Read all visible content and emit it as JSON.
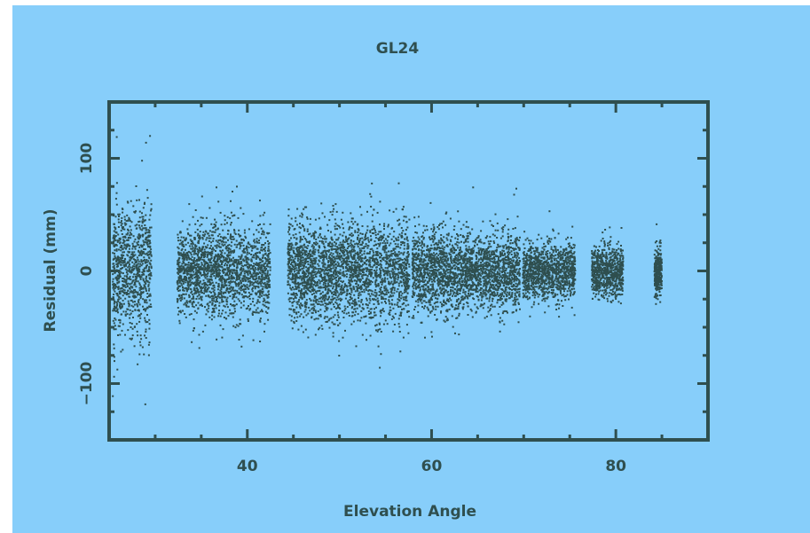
{
  "chart_data": {
    "type": "scatter",
    "title": "GL24",
    "xlabel": "Elevation Angle",
    "ylabel": "Residual (mm)",
    "xlim": [
      25,
      90
    ],
    "ylim": [
      -150,
      150
    ],
    "x_ticks": [
      40,
      60,
      80
    ],
    "x_tick_labels": [
      "40",
      "60",
      "80"
    ],
    "y_ticks": [
      -100,
      0,
      100
    ],
    "y_tick_labels": [
      "−100",
      "0",
      "100"
    ],
    "grid": false,
    "legend": "none",
    "colors": {
      "background": "#87cefa",
      "points": "#2f4f4f",
      "frame": "#2f4f4f"
    },
    "series": [
      {
        "clusters": [
          {
            "x_range": [
              25.3,
              29.5
            ],
            "y_center": 0,
            "spread": 28,
            "extremes": [
              135,
              -130
            ]
          },
          {
            "x_range": [
              32.3,
              42.4
            ],
            "y_center": 0,
            "spread": 20,
            "extremes": [
              85,
              -90
            ]
          },
          {
            "x_range": [
              44.3,
              47.4
            ],
            "y_center": 0,
            "spread": 20,
            "extremes": [
              60,
              -60
            ]
          },
          {
            "x_range": [
              47.5,
              57.5
            ],
            "y_center": 0,
            "spread": 22,
            "extremes": [
              90,
              -95
            ]
          },
          {
            "x_range": [
              57.8,
              63.5
            ],
            "y_center": 0,
            "spread": 18,
            "extremes": [
              65,
              -65
            ]
          },
          {
            "x_range": [
              63.5,
              69.5
            ],
            "y_center": 0,
            "spread": 16,
            "extremes": [
              80,
              -60
            ]
          },
          {
            "x_range": [
              69.8,
              75.5
            ],
            "y_center": 0,
            "spread": 12,
            "extremes": [
              55,
              -40
            ]
          },
          {
            "x_range": [
              77.3,
              80.7
            ],
            "y_center": 0,
            "spread": 11,
            "extremes": [
              40,
              -30
            ]
          },
          {
            "x_range": [
              84.1,
              84.9
            ],
            "y_center": 0,
            "spread": 10,
            "extremes": [
              45,
              -30
            ]
          }
        ]
      }
    ]
  }
}
